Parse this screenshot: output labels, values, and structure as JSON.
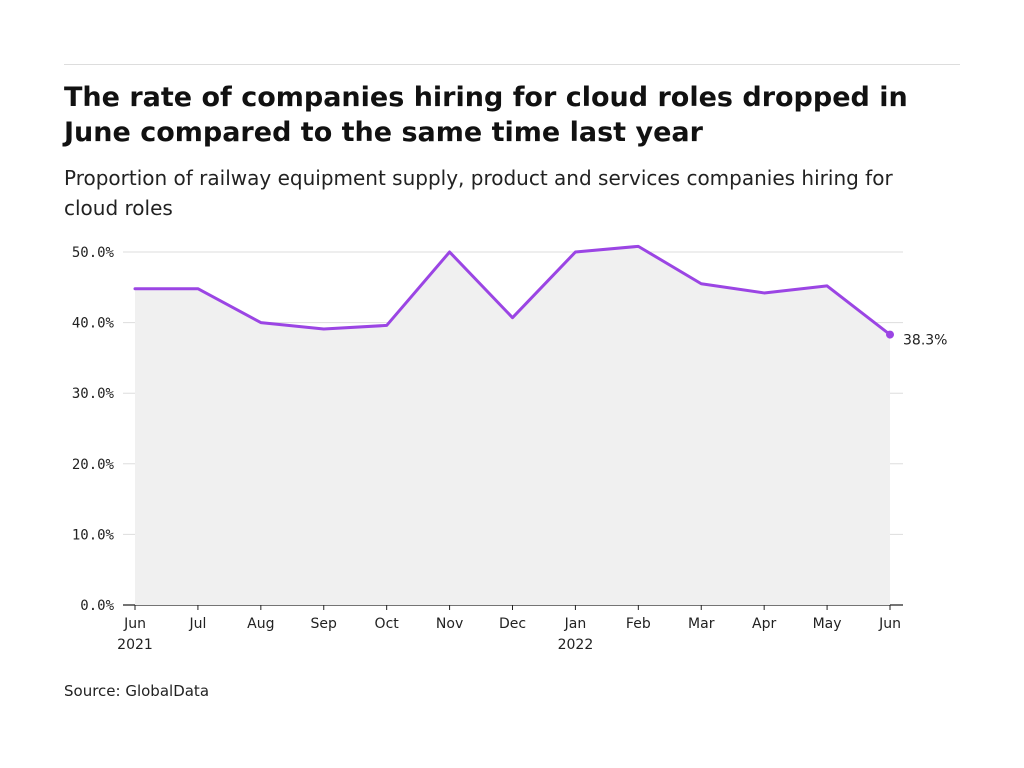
{
  "title": "The rate of companies hiring for cloud roles dropped in June compared to the same time last year",
  "subtitle": "Proportion of railway equipment supply, product and services companies hiring for cloud roles",
  "source": "Source: GlobalData",
  "colors": {
    "line": "#9b45e4",
    "area": "#f0f0f0",
    "grid": "#dddddd",
    "axis": "#222222"
  },
  "chart_data": {
    "type": "area",
    "x": [
      "Jun 2021",
      "Jul 2021",
      "Aug 2021",
      "Sep 2021",
      "Oct 2021",
      "Nov 2021",
      "Dec 2021",
      "Jan 2022",
      "Feb 2022",
      "Mar 2022",
      "Apr 2022",
      "May 2022",
      "Jun 2022"
    ],
    "tick_labels": [
      [
        "Jun",
        "2021"
      ],
      [
        "Jul"
      ],
      [
        "Aug"
      ],
      [
        "Sep"
      ],
      [
        "Oct"
      ],
      [
        "Nov"
      ],
      [
        "Dec"
      ],
      [
        "Jan",
        "2022"
      ],
      [
        "Feb"
      ],
      [
        "Mar"
      ],
      [
        "Apr"
      ],
      [
        "May"
      ],
      [
        "Jun"
      ]
    ],
    "values": [
      44.8,
      44.8,
      40.0,
      39.1,
      39.6,
      50.0,
      40.7,
      50.0,
      50.8,
      45.5,
      44.2,
      45.2,
      38.3
    ],
    "ylim": [
      0,
      50
    ],
    "yticks": [
      0,
      10,
      20,
      30,
      40,
      50
    ],
    "ytick_labels": [
      "0.0%",
      "10.0%",
      "20.0%",
      "30.0%",
      "40.0%",
      "50.0%"
    ],
    "grid": true,
    "end_label": "38.3%"
  }
}
